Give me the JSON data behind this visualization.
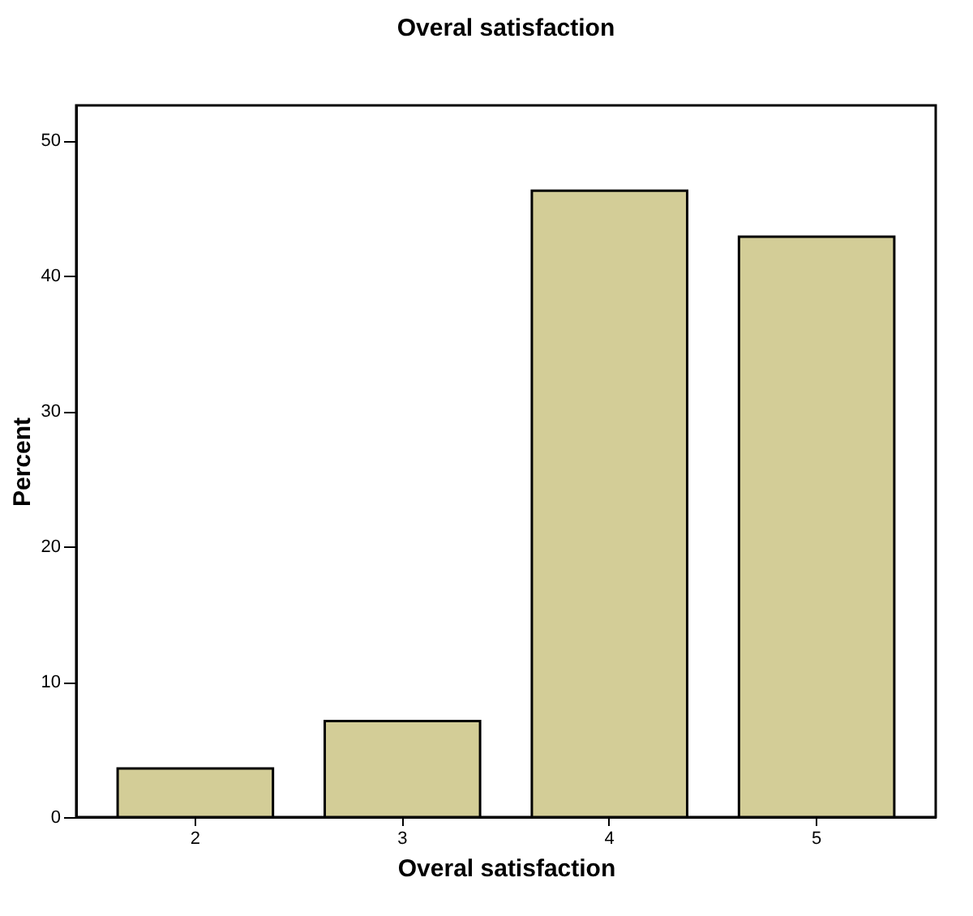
{
  "chart_data": {
    "type": "bar",
    "title": "Overal satisfaction",
    "xlabel": "Overal satisfaction",
    "ylabel": "Percent",
    "categories": [
      "2",
      "3",
      "4",
      "5"
    ],
    "values": [
      3.6,
      7.1,
      46.3,
      42.9
    ],
    "color": "#d3cd97",
    "ylim": [
      0,
      52.6
    ],
    "yticks": [
      0,
      10,
      20,
      30,
      40,
      50
    ],
    "grid": false
  }
}
